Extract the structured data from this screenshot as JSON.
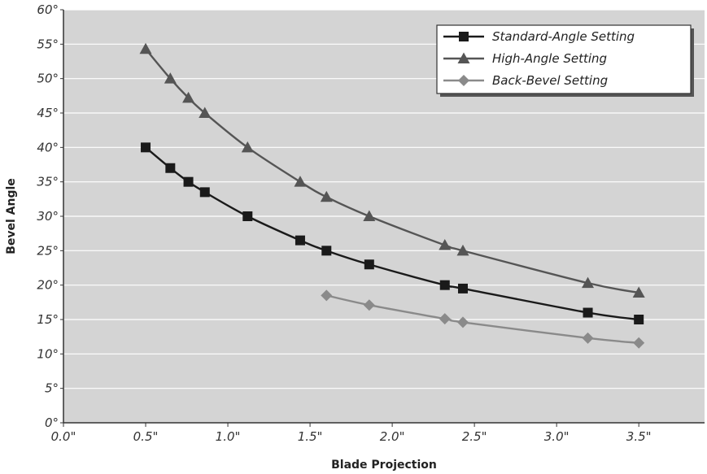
{
  "chart_data": {
    "type": "line",
    "xlabel": "Blade Projection",
    "ylabel": "Bevel Angle",
    "xlim": [
      0,
      3.9
    ],
    "ylim": [
      0,
      60
    ],
    "x_ticks": [
      0,
      0.5,
      1.0,
      1.5,
      2.0,
      2.5,
      3.0,
      3.5
    ],
    "x_tick_labels": [
      "0.0\"",
      "0.5\"",
      "1.0\"",
      "1.5\"",
      "2.0\"",
      "2.5\"",
      "3.0\"",
      "3.5\""
    ],
    "y_ticks": [
      0,
      5,
      10,
      15,
      20,
      25,
      30,
      35,
      40,
      45,
      50,
      55,
      60
    ],
    "y_tick_labels": [
      "0°",
      "5°",
      "10°",
      "15°",
      "20°",
      "25°",
      "30°",
      "35°",
      "40°",
      "45°",
      "50°",
      "55°",
      "60°"
    ],
    "grid": true,
    "legend_position": "top-right",
    "series": [
      {
        "name": "Standard-Angle Setting",
        "marker": "square",
        "color": "#1a1a1a",
        "x": [
          0.5,
          0.65,
          0.76,
          0.86,
          1.12,
          1.44,
          1.6,
          1.86,
          2.32,
          2.43,
          3.19,
          3.5
        ],
        "y": [
          40,
          37,
          35,
          33.5,
          30,
          26.5,
          25,
          23,
          20,
          19.5,
          16,
          15
        ]
      },
      {
        "name": "High-Angle Setting",
        "marker": "triangle",
        "color": "#555555",
        "x": [
          0.5,
          0.65,
          0.76,
          0.86,
          1.12,
          1.44,
          1.6,
          1.86,
          2.32,
          2.43,
          3.19,
          3.5
        ],
        "y": [
          54.3,
          50,
          47.2,
          45,
          40,
          35,
          32.8,
          30,
          25.8,
          25,
          20.3,
          18.9
        ]
      },
      {
        "name": "Back-Bevel Setting",
        "marker": "diamond",
        "color": "#8a8a8a",
        "x": [
          1.6,
          1.86,
          2.32,
          2.43,
          3.19,
          3.5
        ],
        "y": [
          18.5,
          17.1,
          15.1,
          14.6,
          12.3,
          11.6
        ]
      }
    ]
  },
  "colors": {
    "plot_background": "#d4d4d4",
    "grid": "#ffffff",
    "axis": "#333333"
  }
}
